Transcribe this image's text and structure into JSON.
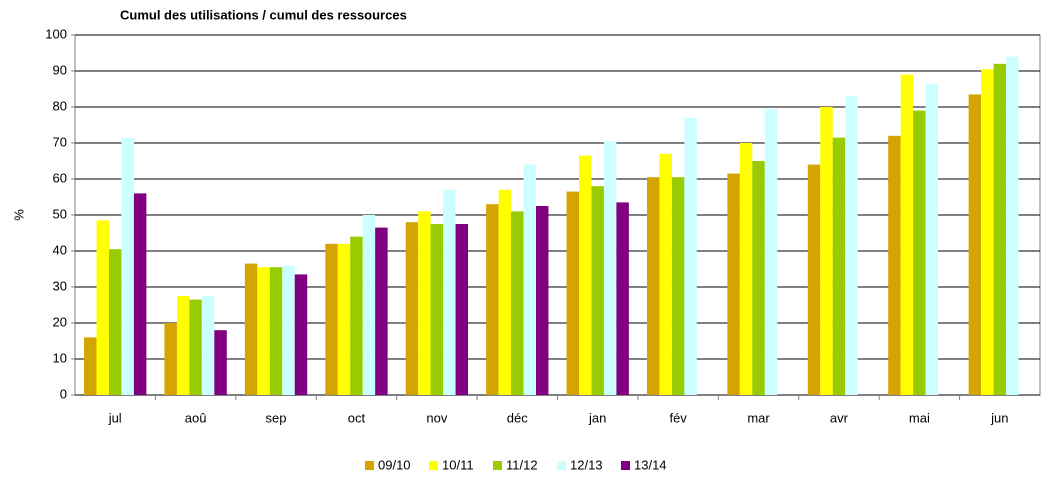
{
  "chart_data": {
    "type": "bar",
    "title": "Cumul des utilisations / cumul des ressources",
    "y_label": "%",
    "categories": [
      "jul",
      "aoû",
      "sep",
      "oct",
      "nov",
      "déc",
      "jan",
      "fév",
      "mar",
      "avr",
      "mai",
      "jun"
    ],
    "series": [
      {
        "name": "09/10",
        "color": "#d4a500",
        "values": [
          16,
          20,
          36.5,
          42,
          48,
          53,
          56.5,
          60.5,
          61.5,
          64,
          72,
          83.5
        ]
      },
      {
        "name": "10/11",
        "color": "#ffff00",
        "values": [
          48.5,
          27.5,
          35.5,
          42,
          51,
          57,
          66.5,
          67,
          70,
          80,
          89,
          90.5
        ]
      },
      {
        "name": "11/12",
        "color": "#99cc00",
        "values": [
          40.5,
          26.5,
          35.5,
          44,
          47.5,
          51,
          58,
          60.5,
          65,
          71.5,
          79,
          92
        ]
      },
      {
        "name": "12/13",
        "color": "#ccffff",
        "values": [
          71.5,
          27.5,
          36,
          50,
          57,
          64,
          70.5,
          77,
          79.5,
          83,
          86.5,
          94
        ]
      },
      {
        "name": "13/14",
        "color": "#800080",
        "values": [
          56,
          18,
          33.5,
          46.5,
          47.5,
          52.5,
          53.5,
          null,
          null,
          null,
          null,
          null
        ]
      }
    ],
    "ylim": [
      0,
      100
    ],
    "yticks": [
      0,
      10,
      20,
      30,
      40,
      50,
      60,
      70,
      80,
      90,
      100
    ],
    "grid": true,
    "legend": "bottom"
  }
}
